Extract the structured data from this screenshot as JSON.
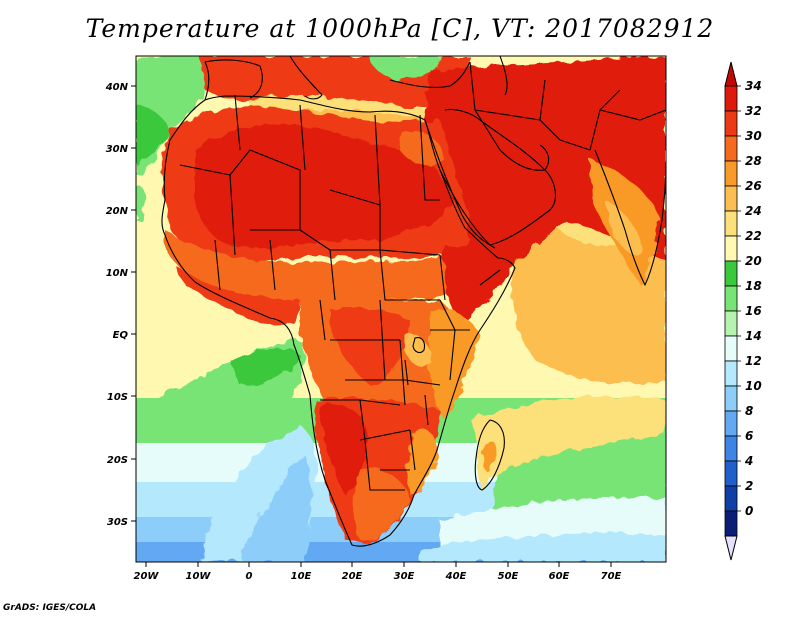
{
  "title": "Temperature at 1000hPa [C], VT: 2017082912",
  "credit": "GrADS: IGES/COLA",
  "axes": {
    "y_ticks": [
      "40N",
      "30N",
      "20N",
      "10N",
      "EQ",
      "10S",
      "20S",
      "30S"
    ],
    "x_ticks": [
      "20W",
      "10W",
      "0",
      "10E",
      "20E",
      "30E",
      "40E",
      "50E",
      "60E",
      "70E"
    ]
  },
  "colorbar": {
    "labels": [
      "34",
      "32",
      "30",
      "28",
      "26",
      "24",
      "22",
      "20",
      "18",
      "16",
      "14",
      "12",
      "10",
      "8",
      "6",
      "4",
      "2",
      "0"
    ],
    "colors": [
      "#e01a0a",
      "#ee3a14",
      "#f56a1e",
      "#fa9a28",
      "#fcbe50",
      "#fce07a",
      "#fef8b0",
      "#3ac83c",
      "#78e476",
      "#b4f4ae",
      "#e6fcfa",
      "#b4e8fc",
      "#8ccdfa",
      "#62a8f2",
      "#3c84e6",
      "#2060cc",
      "#1040a6",
      "#0a1e78"
    ],
    "top_arrow_color": "#c40806",
    "bottom_arrow_color": "#e6e0fc"
  },
  "map_colors": {
    "ocean_south_deep": "#62a8f2",
    "ocean_south": "#8ccdfa",
    "ocean_south_light": "#b4e8fc",
    "ocean_pale": "#e6fcfa",
    "ocean_green": "#78e476",
    "ocean_green_dark": "#3ac83c",
    "ocean_warm": "#fef8b0",
    "ocean_yellow": "#fce07a",
    "ocean_orange": "#fcbe50",
    "land_hot": "#e01a0a",
    "land_warm": "#ee3a14",
    "land_mid": "#f56a1e",
    "land_cool": "#fa9a28"
  }
}
